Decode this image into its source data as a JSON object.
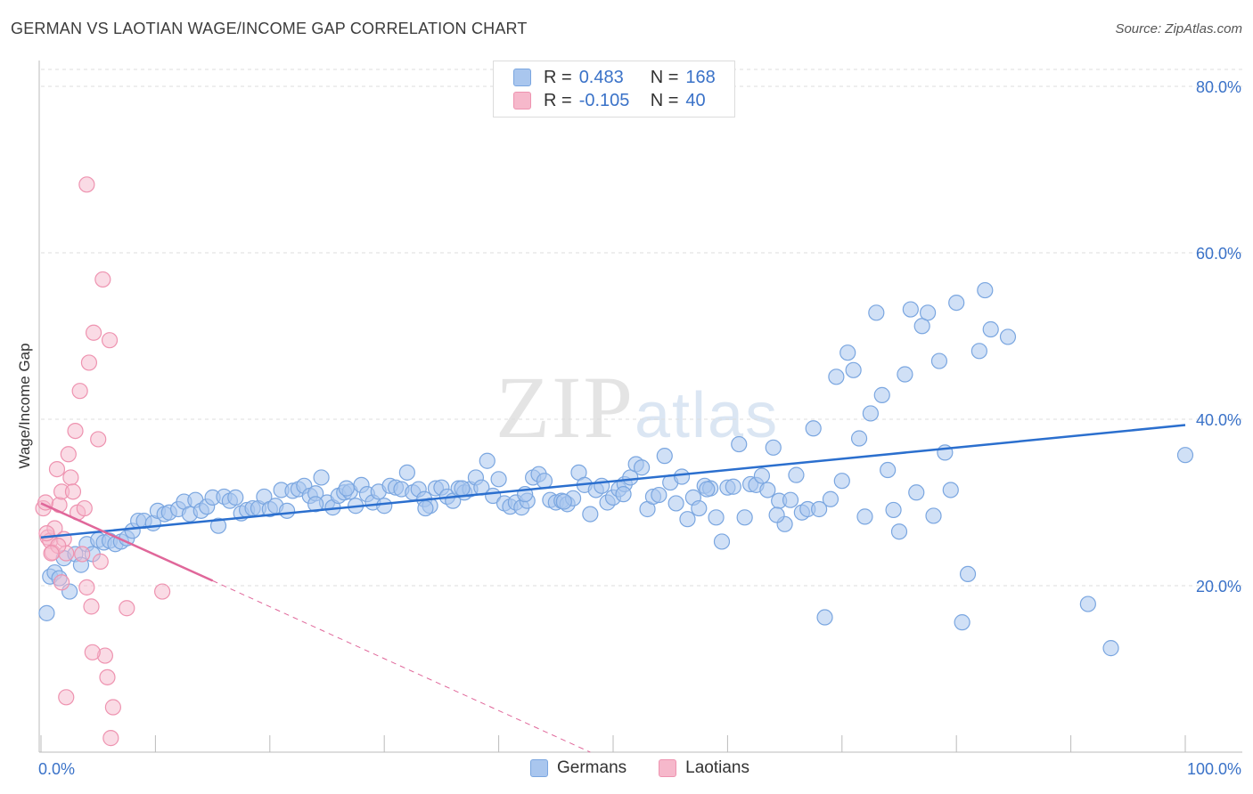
{
  "header": {
    "title": "GERMAN VS LAOTIAN WAGE/INCOME GAP CORRELATION CHART",
    "source": "Source: ZipAtlas.com"
  },
  "watermark": {
    "zip": "ZIP",
    "atlas": "atlas"
  },
  "legend": {
    "rows": [
      {
        "r_label": "R =",
        "r_value": "0.483",
        "n_label": "N =",
        "n_value": "168"
      },
      {
        "r_label": "R =",
        "r_value": "-0.105",
        "n_label": "N =",
        "n_value": "40"
      }
    ]
  },
  "bottom_legend": {
    "germans": "Germans",
    "laotians": "Laotians"
  },
  "colors": {
    "german_fill": "#a9c6ee",
    "german_stroke": "#7aa6e0",
    "german_line": "#2b6fce",
    "laotian_fill": "#f6b8cb",
    "laotian_stroke": "#ee93b0",
    "laotian_line": "#e0679a",
    "tick_label": "#3a72c8",
    "grid": "#dddddd"
  },
  "chart_data": {
    "type": "scatter",
    "title": "GERMAN VS LAOTIAN WAGE/INCOME GAP CORRELATION CHART",
    "xlabel": "",
    "ylabel": "Wage/Income Gap",
    "xlim": [
      0,
      100
    ],
    "ylim": [
      0,
      80
    ],
    "x_tick_labels": [
      "0.0%",
      "100.0%"
    ],
    "y_ticks": [
      20,
      40,
      60,
      80
    ],
    "y_tick_labels": [
      "20.0%",
      "40.0%",
      "60.0%",
      "80.0%"
    ],
    "grid": true,
    "legend_position": "top-center",
    "series": [
      {
        "name": "Germans",
        "trend": {
          "x0": 0,
          "y0": 25.8,
          "x1": 100,
          "y1": 39.3,
          "style": "solid"
        },
        "points": [
          [
            0.5,
            16.7
          ],
          [
            0.8,
            21.1
          ],
          [
            1.2,
            21.6
          ],
          [
            1.6,
            20.9
          ],
          [
            2.0,
            23.3
          ],
          [
            2.5,
            19.3
          ],
          [
            3.0,
            23.8
          ],
          [
            3.5,
            22.5
          ],
          [
            4.0,
            25.0
          ],
          [
            4.5,
            23.8
          ],
          [
            5.0,
            25.5
          ],
          [
            5.5,
            25.2
          ],
          [
            6.0,
            25.4
          ],
          [
            6.5,
            25.0
          ],
          [
            7.0,
            25.3
          ],
          [
            7.5,
            25.7
          ],
          [
            8.0,
            26.6
          ],
          [
            8.5,
            27.8
          ],
          [
            9.0,
            27.8
          ],
          [
            9.8,
            27.5
          ],
          [
            10.2,
            29.0
          ],
          [
            10.8,
            28.6
          ],
          [
            11.2,
            28.8
          ],
          [
            12.0,
            29.2
          ],
          [
            12.5,
            30.1
          ],
          [
            13.0,
            28.6
          ],
          [
            13.5,
            30.3
          ],
          [
            14.0,
            29.0
          ],
          [
            14.5,
            29.5
          ],
          [
            15.0,
            30.6
          ],
          [
            15.5,
            27.2
          ],
          [
            16.0,
            30.7
          ],
          [
            16.5,
            30.2
          ],
          [
            17.0,
            30.6
          ],
          [
            17.5,
            28.7
          ],
          [
            18.0,
            29.1
          ],
          [
            18.5,
            29.3
          ],
          [
            19.0,
            29.3
          ],
          [
            19.5,
            30.7
          ],
          [
            20.0,
            29.2
          ],
          [
            20.5,
            29.6
          ],
          [
            21.0,
            31.5
          ],
          [
            21.5,
            29.0
          ],
          [
            22.0,
            31.4
          ],
          [
            22.5,
            31.6
          ],
          [
            23.0,
            32.0
          ],
          [
            23.5,
            30.8
          ],
          [
            24.0,
            31.1
          ],
          [
            24.5,
            33.0
          ],
          [
            25.0,
            30.0
          ],
          [
            25.5,
            29.4
          ],
          [
            26.0,
            30.8
          ],
          [
            26.5,
            31.2
          ],
          [
            27.0,
            31.3
          ],
          [
            27.5,
            29.6
          ],
          [
            28.0,
            32.1
          ],
          [
            28.5,
            31.0
          ],
          [
            29.0,
            30.0
          ],
          [
            29.5,
            31.3
          ],
          [
            30.0,
            29.6
          ],
          [
            30.5,
            32.0
          ],
          [
            31.0,
            31.8
          ],
          [
            31.5,
            31.6
          ],
          [
            32.0,
            33.6
          ],
          [
            32.5,
            31.2
          ],
          [
            33.0,
            31.6
          ],
          [
            33.5,
            30.4
          ],
          [
            34.0,
            29.6
          ],
          [
            34.5,
            31.7
          ],
          [
            35.0,
            31.8
          ],
          [
            35.5,
            30.7
          ],
          [
            36.0,
            30.2
          ],
          [
            36.5,
            31.7
          ],
          [
            37.0,
            31.2
          ],
          [
            37.5,
            31.6
          ],
          [
            38.0,
            33.0
          ],
          [
            38.5,
            31.8
          ],
          [
            39.0,
            35.0
          ],
          [
            39.5,
            30.8
          ],
          [
            40.0,
            32.8
          ],
          [
            40.5,
            29.9
          ],
          [
            41.0,
            29.5
          ],
          [
            41.5,
            30.0
          ],
          [
            42.0,
            29.4
          ],
          [
            42.5,
            30.2
          ],
          [
            43.0,
            33.0
          ],
          [
            43.5,
            33.4
          ],
          [
            44.0,
            32.6
          ],
          [
            44.5,
            30.3
          ],
          [
            45.0,
            30.0
          ],
          [
            45.5,
            30.2
          ],
          [
            46.0,
            29.8
          ],
          [
            46.5,
            30.5
          ],
          [
            47.0,
            33.6
          ],
          [
            47.5,
            32.1
          ],
          [
            48.0,
            28.6
          ],
          [
            48.5,
            31.5
          ],
          [
            49.0,
            32.0
          ],
          [
            49.5,
            30.0
          ],
          [
            50.0,
            30.6
          ],
          [
            50.5,
            31.6
          ],
          [
            51.0,
            32.2
          ],
          [
            51.5,
            33.0
          ],
          [
            52.0,
            34.6
          ],
          [
            52.5,
            34.2
          ],
          [
            53.0,
            29.2
          ],
          [
            53.5,
            30.7
          ],
          [
            54.0,
            30.9
          ],
          [
            54.5,
            35.6
          ],
          [
            55.0,
            32.4
          ],
          [
            55.5,
            29.9
          ],
          [
            56.0,
            33.1
          ],
          [
            56.5,
            28.0
          ],
          [
            57.0,
            30.6
          ],
          [
            57.5,
            29.3
          ],
          [
            58.0,
            32.0
          ],
          [
            58.5,
            31.7
          ],
          [
            59.0,
            28.2
          ],
          [
            59.5,
            25.3
          ],
          [
            60.0,
            31.8
          ],
          [
            60.5,
            31.9
          ],
          [
            61.0,
            37.0
          ],
          [
            61.5,
            28.2
          ],
          [
            62.0,
            32.2
          ],
          [
            62.5,
            32.1
          ],
          [
            63.0,
            33.2
          ],
          [
            63.5,
            31.5
          ],
          [
            64.0,
            36.6
          ],
          [
            64.5,
            30.2
          ],
          [
            65.0,
            27.4
          ],
          [
            65.5,
            30.3
          ],
          [
            66.0,
            33.3
          ],
          [
            66.5,
            28.8
          ],
          [
            67.0,
            29.2
          ],
          [
            67.5,
            38.9
          ],
          [
            68.0,
            29.2
          ],
          [
            68.5,
            16.2
          ],
          [
            69.0,
            30.4
          ],
          [
            69.5,
            45.1
          ],
          [
            70.0,
            32.6
          ],
          [
            70.5,
            48.0
          ],
          [
            71.0,
            45.9
          ],
          [
            71.5,
            37.7
          ],
          [
            72.0,
            28.3
          ],
          [
            72.5,
            40.7
          ],
          [
            73.0,
            52.8
          ],
          [
            73.5,
            42.9
          ],
          [
            74.0,
            33.9
          ],
          [
            74.5,
            29.1
          ],
          [
            75.0,
            26.5
          ],
          [
            75.5,
            45.4
          ],
          [
            76.0,
            53.2
          ],
          [
            76.5,
            31.2
          ],
          [
            77.0,
            51.2
          ],
          [
            77.5,
            52.8
          ],
          [
            78.0,
            28.4
          ],
          [
            78.5,
            47.0
          ],
          [
            79.0,
            36.0
          ],
          [
            79.5,
            31.5
          ],
          [
            80.0,
            54.0
          ],
          [
            80.5,
            15.6
          ],
          [
            81.0,
            21.4
          ],
          [
            82.0,
            48.2
          ],
          [
            82.5,
            55.5
          ],
          [
            83.0,
            50.8
          ],
          [
            84.5,
            49.9
          ],
          [
            91.5,
            17.8
          ],
          [
            93.5,
            12.5
          ],
          [
            100.0,
            35.7
          ],
          [
            45.7,
            30.1
          ],
          [
            24.0,
            29.8
          ],
          [
            26.7,
            31.7
          ],
          [
            33.6,
            29.3
          ],
          [
            36.8,
            31.7
          ],
          [
            42.3,
            31.0
          ],
          [
            50.9,
            31.0
          ],
          [
            58.2,
            31.6
          ],
          [
            64.3,
            28.5
          ]
        ]
      },
      {
        "name": "Laotians",
        "trend": {
          "x0": 0,
          "y0": 29.9,
          "x1": 15,
          "y1": 20.6,
          "style": "solid",
          "dashed_to": {
            "x": 48,
            "y": 0
          }
        },
        "points": [
          [
            0.2,
            29.3
          ],
          [
            0.4,
            30.0
          ],
          [
            0.6,
            25.8
          ],
          [
            0.8,
            25.4
          ],
          [
            1.0,
            24.0
          ],
          [
            1.2,
            26.9
          ],
          [
            1.4,
            34.0
          ],
          [
            1.6,
            29.7
          ],
          [
            1.8,
            31.3
          ],
          [
            2.0,
            25.6
          ],
          [
            2.2,
            23.9
          ],
          [
            2.4,
            35.8
          ],
          [
            2.6,
            33.0
          ],
          [
            2.8,
            31.3
          ],
          [
            3.0,
            38.6
          ],
          [
            3.2,
            28.8
          ],
          [
            3.4,
            43.4
          ],
          [
            3.6,
            23.8
          ],
          [
            3.8,
            29.3
          ],
          [
            4.0,
            19.8
          ],
          [
            4.2,
            46.8
          ],
          [
            4.4,
            17.5
          ],
          [
            4.6,
            50.4
          ],
          [
            5.0,
            37.6
          ],
          [
            5.2,
            22.9
          ],
          [
            5.4,
            56.8
          ],
          [
            5.6,
            11.6
          ],
          [
            5.8,
            9.0
          ],
          [
            6.0,
            49.5
          ],
          [
            6.3,
            5.4
          ],
          [
            4.0,
            68.2
          ],
          [
            1.8,
            20.4
          ],
          [
            1.5,
            24.8
          ],
          [
            0.9,
            23.9
          ],
          [
            2.2,
            6.6
          ],
          [
            4.5,
            12.0
          ],
          [
            6.1,
            1.7
          ],
          [
            7.5,
            17.3
          ],
          [
            10.6,
            19.3
          ],
          [
            0.5,
            26.3
          ]
        ]
      }
    ]
  }
}
